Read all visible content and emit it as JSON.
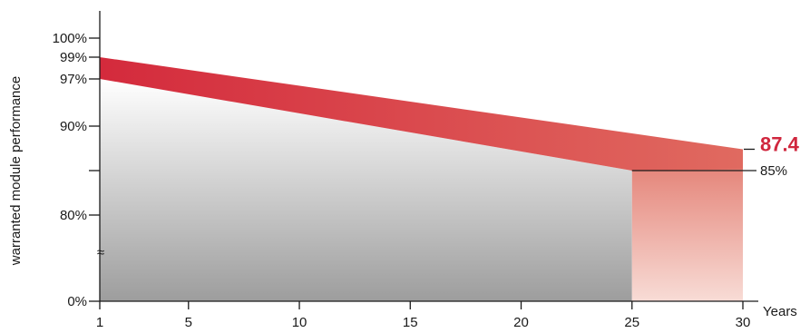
{
  "chart_data": {
    "type": "area",
    "title": "",
    "xlabel": "Years",
    "ylabel": "warranted module performance",
    "x_ticks": [
      "1",
      "5",
      "10",
      "15",
      "20",
      "25",
      "30"
    ],
    "y_ticks": [
      {
        "label": "100%",
        "value": 100
      },
      {
        "label": "99%",
        "value": 99
      },
      {
        "label": "97%",
        "value": 97
      },
      {
        "label": "90%",
        "value": 90
      },
      {
        "label": "",
        "value": 85
      },
      {
        "label": "80%",
        "value": 80
      },
      {
        "label": "0%",
        "value": 0
      }
    ],
    "axis_break_symbol": "≈",
    "series": [
      {
        "values_x": [
          1,
          25
        ],
        "values_y": [
          97,
          85
        ]
      },
      {
        "values_x": [
          1,
          30
        ],
        "values_y": [
          99,
          87.4
        ]
      }
    ],
    "annotations": [
      {
        "label": "87.4",
        "x": 30,
        "y": 87.4,
        "color": "#d0273e"
      },
      {
        "label": "85%",
        "x": 25,
        "y": 85,
        "color": "#1a1a1a"
      }
    ],
    "colors": {
      "red_band_start": "#d42a3c",
      "red_band_end": "#e06a60",
      "gray_top": "#ffffff",
      "gray_bottom": "#9d9d9d",
      "pink_top": "#e27a6e",
      "pink_bottom": "#f8dcd6"
    }
  }
}
